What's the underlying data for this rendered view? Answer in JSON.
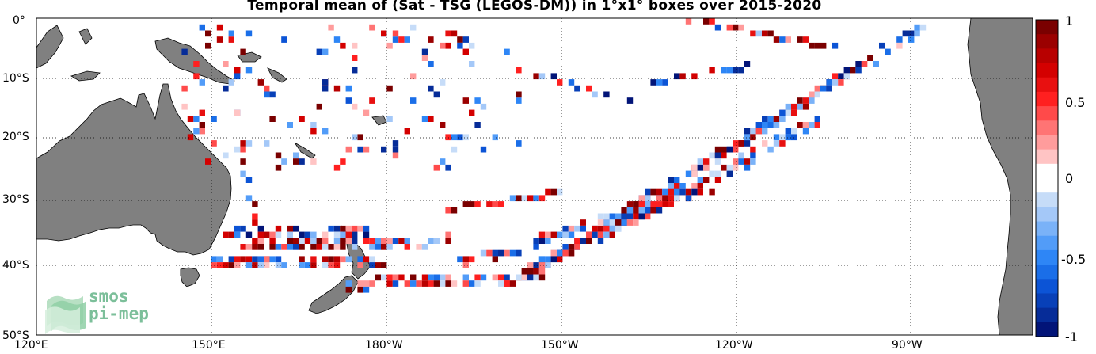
{
  "title": "Temporal mean of (Sat - TSG (LEGOS-DM)) in 1°x1° boxes over 2015-2020",
  "lat_labels": [
    "0°",
    "10°S",
    "20°S",
    "30°S",
    "40°S",
    "50°S"
  ],
  "lon_labels": [
    "120°E",
    "150°E",
    "180°W",
    "150°W",
    "120°W",
    "90°W"
  ],
  "colorbar": {
    "ticks": [
      "1",
      "0.5",
      "0",
      "-0.5",
      "-1"
    ],
    "min": -1,
    "max": 1,
    "levels": [
      "#7a0000",
      "#9b0000",
      "#b80000",
      "#d40000",
      "#e81010",
      "#ff2020",
      "#ff4a4a",
      "#ff7474",
      "#ff9c9c",
      "#ffc4c4",
      "#ffffff",
      "#ffffff",
      "#c6dcf8",
      "#a4c8f8",
      "#7ab2f8",
      "#529cf8",
      "#2e86f6",
      "#1a6ee8",
      "#0c54d6",
      "#0840b8",
      "#062c98",
      "#021478"
    ]
  },
  "logo": {
    "line1": "smos",
    "line2": "pi-mep"
  },
  "colors": {
    "land": "#808080",
    "coast": "#000000",
    "grid": "#000000"
  }
}
